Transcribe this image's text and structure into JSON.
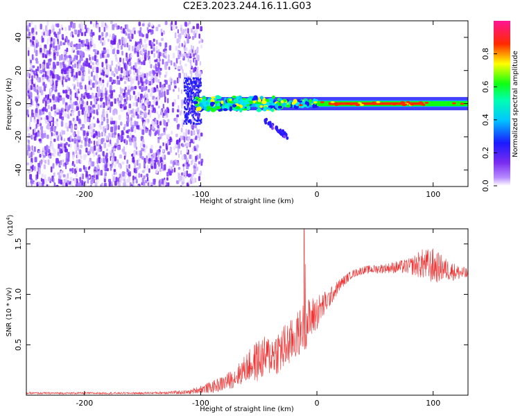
{
  "title": "C2E3.2023.244.16.11.G03",
  "chart_data": [
    {
      "type": "heatmap",
      "xlabel": "Height of straight line (km)",
      "ylabel": "Frequency (Hz)",
      "xlim": [
        -250,
        130
      ],
      "ylim": [
        -50,
        50
      ],
      "xticks": [
        -200,
        -100,
        0,
        100
      ],
      "yticks": [
        40,
        20,
        0,
        -20,
        -40
      ],
      "colorbar": {
        "label": "Normalized spectral amplitude",
        "range": [
          0,
          1
        ],
        "ticks": [
          "0.0",
          "0.2",
          "0.4",
          "0.6",
          "0.8"
        ],
        "colors": [
          "#ffffff",
          "#8f3cff",
          "#1e1eff",
          "#00ffff",
          "#00ff33",
          "#ffff00",
          "#ff2a00",
          "#ff1493"
        ]
      },
      "features": [
        {
          "region": "noise",
          "x_range": [
            -250,
            -105
          ],
          "freq_range": [
            -50,
            50
          ],
          "amplitude": "low-medium (violet)"
        },
        {
          "region": "carrier",
          "x_range": [
            -105,
            130
          ],
          "freq_center": 0,
          "amplitude": "high (red at x>0)"
        },
        {
          "region": "branch",
          "x_range": [
            -45,
            -25
          ],
          "freq_range": [
            -20,
            -10
          ],
          "amplitude": "medium (blue)"
        }
      ]
    },
    {
      "type": "line",
      "xlabel": "Height of straight line (km)",
      "ylabel": "SNR (10 * v/v)",
      "multiplier": "(x10^4)",
      "multiplier_base": "(x10",
      "multiplier_exp": "4",
      "multiplier_close": ")",
      "xlim": [
        -250,
        130
      ],
      "ylim": [
        0,
        1.65
      ],
      "xticks": [
        -200,
        -100,
        0,
        100
      ],
      "yticks": [
        "0.5",
        "1.0",
        "1.5"
      ],
      "color": "#ee3333",
      "series": [
        {
          "x": [
            -250,
            -200,
            -150,
            -110,
            -100,
            -90,
            -80,
            -70,
            -60,
            -50,
            -40,
            -30,
            -20,
            -10,
            0,
            10,
            20,
            30,
            40,
            60,
            80,
            90,
            100,
            110,
            120,
            130
          ],
          "y": [
            0.02,
            0.02,
            0.02,
            0.03,
            0.06,
            0.08,
            0.12,
            0.18,
            0.28,
            0.35,
            0.4,
            0.45,
            0.55,
            0.7,
            0.82,
            0.95,
            1.1,
            1.2,
            1.24,
            1.26,
            1.28,
            1.3,
            1.28,
            1.25,
            1.22,
            1.2
          ],
          "noise": [
            0.01,
            0.01,
            0.01,
            0.02,
            0.04,
            0.06,
            0.08,
            0.1,
            0.15,
            0.22,
            0.2,
            0.25,
            0.22,
            0.25,
            0.18,
            0.1,
            0.06,
            0.04,
            0.04,
            0.05,
            0.08,
            0.15,
            0.18,
            0.12,
            0.08,
            0.06
          ],
          "spikes": [
            {
              "x": -11,
              "y": 1.65
            },
            {
              "x": -10,
              "y": 1.3
            }
          ]
        }
      ]
    }
  ]
}
